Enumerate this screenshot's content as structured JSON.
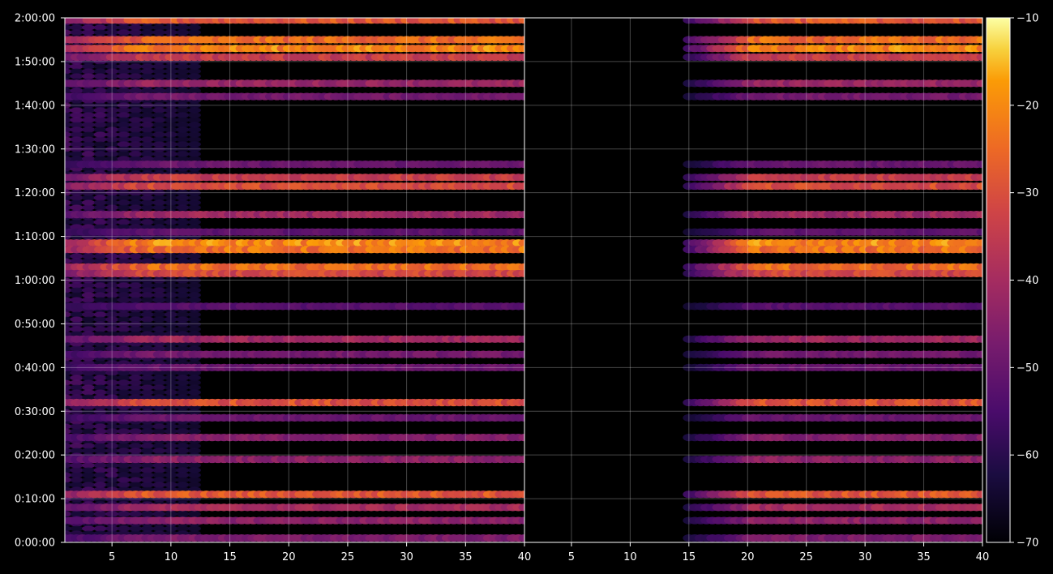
{
  "chart_data": {
    "type": "heatmap",
    "title": "",
    "colormap": "inferno",
    "background": "#000000",
    "grid": true,
    "panels": [
      {
        "name": "",
        "x_range": [
          1,
          40
        ],
        "x_ticks": [
          "5",
          "10",
          "15",
          "20",
          "25",
          "30",
          "35",
          "40"
        ],
        "start_level": 0.0,
        "region_start_x": 1
      },
      {
        "name": "",
        "x_range": [
          1,
          40
        ],
        "x_ticks": [
          "5",
          "10",
          "15",
          "20",
          "25",
          "30",
          "35",
          "40"
        ],
        "start_level": 0.62,
        "region_start_x": 15
      }
    ],
    "y_axis": {
      "range_seconds": [
        0,
        7200
      ],
      "ticks": [
        "0:00:00",
        "0:10:00",
        "0:20:00",
        "0:30:00",
        "0:40:00",
        "0:50:00",
        "1:00:00",
        "1:10:00",
        "1:20:00",
        "1:30:00",
        "1:40:00",
        "1:50:00",
        "2:00:00"
      ]
    },
    "colorbar": {
      "range": [
        -70,
        -10
      ],
      "ticks": [
        "−70",
        "−60",
        "−50",
        "−40",
        "−30",
        "−20",
        "−10"
      ]
    },
    "bands": [
      {
        "t": "1:59:30",
        "level": 0.72
      },
      {
        "t": "1:55:00",
        "level": 0.78
      },
      {
        "t": "1:53:00",
        "level": 0.85
      },
      {
        "t": "1:51:00",
        "level": 0.62
      },
      {
        "t": "1:45:00",
        "level": 0.48
      },
      {
        "t": "1:42:00",
        "level": 0.38
      },
      {
        "t": "1:26:30",
        "level": 0.35
      },
      {
        "t": "1:23:30",
        "level": 0.62
      },
      {
        "t": "1:21:30",
        "level": 0.68
      },
      {
        "t": "1:15:00",
        "level": 0.5
      },
      {
        "t": "1:11:00",
        "level": 0.32
      },
      {
        "t": "1:08:30",
        "level": 0.86
      },
      {
        "t": "1:07:00",
        "level": 0.8
      },
      {
        "t": "1:03:00",
        "level": 0.78
      },
      {
        "t": "1:01:30",
        "level": 0.66
      },
      {
        "t": "0:54:00",
        "level": 0.3
      },
      {
        "t": "0:46:30",
        "level": 0.5
      },
      {
        "t": "0:43:00",
        "level": 0.38
      },
      {
        "t": "0:40:00",
        "level": 0.35
      },
      {
        "t": "0:32:00",
        "level": 0.7
      },
      {
        "t": "0:28:30",
        "level": 0.35
      },
      {
        "t": "0:24:00",
        "level": 0.42
      },
      {
        "t": "0:19:00",
        "level": 0.45
      },
      {
        "t": "0:11:00",
        "level": 0.72
      },
      {
        "t": "0:08:00",
        "level": 0.52
      },
      {
        "t": "0:05:00",
        "level": 0.45
      },
      {
        "t": "0:01:00",
        "level": 0.4
      }
    ]
  }
}
